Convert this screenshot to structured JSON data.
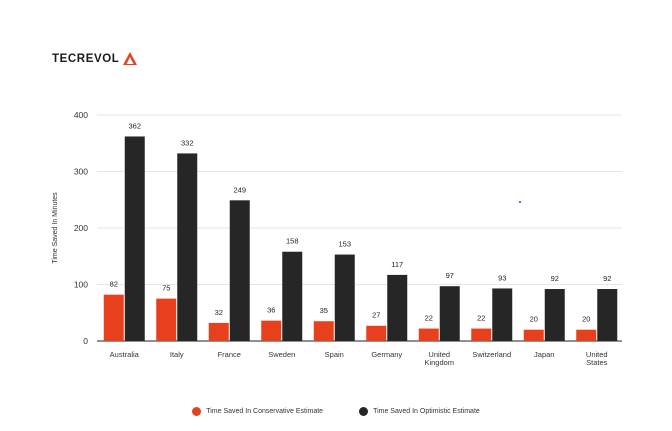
{
  "brand": {
    "name": "TECREVOL",
    "accent": "#e8401c"
  },
  "chart_data": {
    "type": "bar",
    "title": "",
    "xlabel": "",
    "ylabel": "Time Saved In Minutes",
    "ylim": [
      0,
      400
    ],
    "yticks": [
      0,
      100,
      200,
      300,
      400
    ],
    "grid": true,
    "legend": "bottom",
    "categories": [
      [
        "Australia"
      ],
      [
        "Italy"
      ],
      [
        "France"
      ],
      [
        "Sweden"
      ],
      [
        "Spain"
      ],
      [
        "Germany"
      ],
      [
        "United",
        "Kingdom"
      ],
      [
        "Switzerland"
      ],
      [
        "Japan"
      ],
      [
        "United",
        "States"
      ]
    ],
    "series": [
      {
        "name": "Time Saved In Conservative Estimate",
        "color": "#e8401c",
        "values": [
          82,
          75,
          32,
          36,
          35,
          27,
          22,
          22,
          20,
          20
        ]
      },
      {
        "name": "Time Saved In Optimistic Estimate",
        "color": "#262626",
        "values": [
          362,
          332,
          249,
          158,
          153,
          117,
          97,
          93,
          92,
          92
        ]
      }
    ]
  }
}
